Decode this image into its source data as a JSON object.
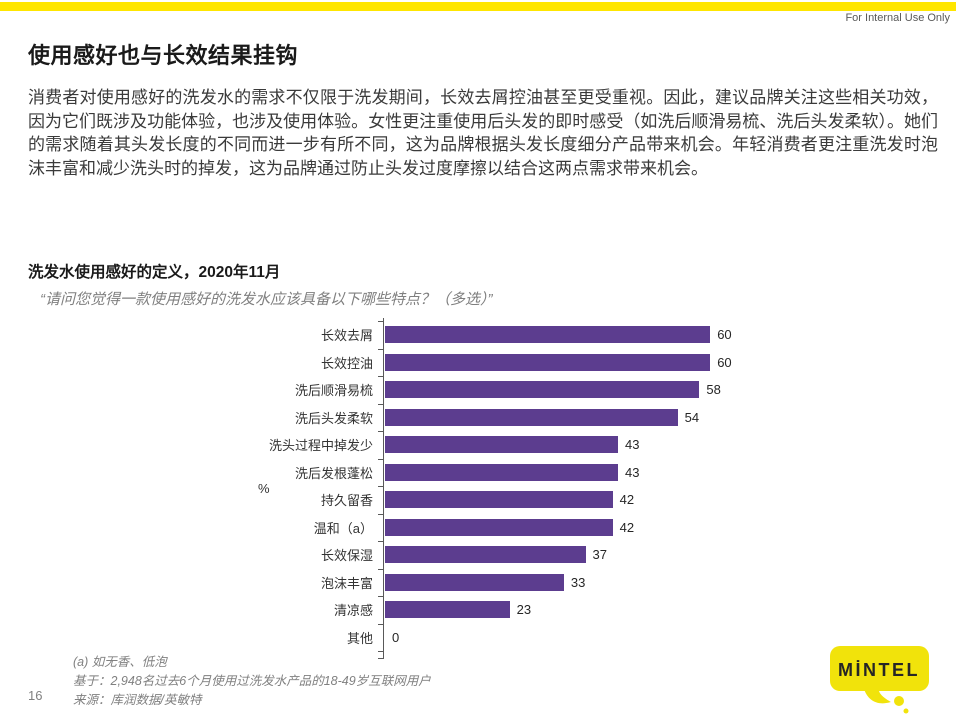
{
  "header": {
    "classification": "For Internal Use Only",
    "page_title": "使用感好也与长效结果挂钩"
  },
  "body": {
    "paragraph": "消费者对使用感好的洗发水的需求不仅限于洗发期间，长效去屑控油甚至更受重视。因此，建议品牌关注这些相关功效，因为它们既涉及功能体验，也涉及使用体验。女性更注重使用后头发的即时感受（如洗后顺滑易梳、洗后头发柔软）。她们的需求随着其头发长度的不同而进一步有所不同，这为品牌根据头发长度细分产品带来机会。年轻消费者更注重洗发时泡沫丰富和减少洗头时的掉发，这为品牌通过防止头发过度摩擦以结合这两点需求带来机会。"
  },
  "chart": {
    "title": "洗发水使用感好的定义，2020年11月",
    "question": "“请问您觉得一款使用感好的洗发水应该具备以下哪些特点？（多选）”"
  },
  "chart_data": {
    "type": "bar",
    "orientation": "horizontal",
    "title": "洗发水使用感好的定义，2020年11月",
    "categories": [
      "长效去屑",
      "长效控油",
      "洗后顺滑易梳",
      "洗后头发柔软",
      "洗头过程中掉发少",
      "洗后发根蓬松",
      "持久留香",
      "温和（a）",
      "长效保湿",
      "泡沫丰富",
      "清凉感",
      "其他"
    ],
    "values": [
      60,
      60,
      58,
      54,
      43,
      43,
      42,
      42,
      37,
      33,
      23,
      0
    ],
    "unit": "%",
    "axis_label": "%",
    "xlim": [
      0,
      66
    ],
    "grid": false,
    "legend": "none",
    "bar_color": "#5C3D8F"
  },
  "footnotes": {
    "note_a": "(a) 如无香、低泡",
    "base": "基于：2,948名过去6个月使用过洗发水产品的18-49岁互联网用户",
    "source": "来源：库润数据/英敏特"
  },
  "footer": {
    "page_number": "16",
    "logo_text": "MİNTEL"
  },
  "colors": {
    "accent_yellow": "#FFE600",
    "logo_yellow": "#F1E30B",
    "bar_purple": "#5C3D8F",
    "axis_gray": "#595959"
  }
}
